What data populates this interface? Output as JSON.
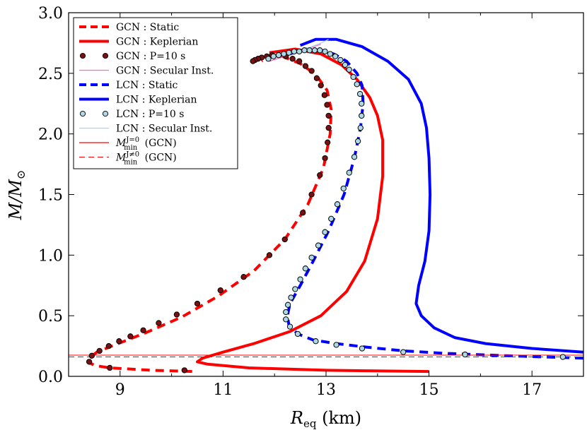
{
  "chart_data": {
    "type": "line",
    "xlabel": "R_eq (km)",
    "xlabel_main": "R",
    "xlabel_sub": "eq",
    "xlabel_unit": " (km)",
    "ylabel": "M/M_sun",
    "ylabel_main": "M/M",
    "ylabel_sub": "⊙",
    "xlim": [
      8,
      18
    ],
    "ylim": [
      0,
      3
    ],
    "xticks": [
      9,
      11,
      13,
      15,
      17
    ],
    "xtick_labels": [
      "9",
      "11",
      "13",
      "15",
      "17"
    ],
    "yticks": [
      0,
      0.5,
      1.0,
      1.5,
      2.0,
      2.5,
      3.0
    ],
    "ytick_labels": [
      "0.0",
      "0.5",
      "1.0",
      "1.5",
      "2.0",
      "2.5",
      "3.0"
    ],
    "legend_position": "top-left",
    "colors": {
      "gcn": "#ff0000",
      "lcn": "#0000ff",
      "gcn_dot": "#7a1010",
      "lcn_dot": "#add8e6",
      "gcn_secular": "#ff69b4",
      "lcn_secular": "#a9d3f5"
    },
    "series": [
      {
        "name": "GCN : Static",
        "legend": "GCN : Static",
        "style": "dashed",
        "color": "#ff0000",
        "x": [
          10.4,
          9.6,
          8.8,
          8.5,
          8.38,
          8.4,
          8.55,
          8.9,
          9.5,
          10.2,
          10.9,
          11.6,
          12.2,
          12.65,
          12.95,
          13.08,
          13.1,
          13.02,
          12.8,
          12.5,
          12.15,
          11.85,
          11.75
        ],
        "y": [
          0.04,
          0.05,
          0.07,
          0.09,
          0.12,
          0.15,
          0.2,
          0.26,
          0.36,
          0.49,
          0.66,
          0.87,
          1.13,
          1.42,
          1.72,
          2.0,
          2.2,
          2.36,
          2.49,
          2.58,
          2.64,
          2.63,
          2.6
        ]
      },
      {
        "name": "GCN : Keplerian",
        "legend": "GCN : Keplerian",
        "style": "solid",
        "color": "#ff0000",
        "x": [
          15.0,
          13.0,
          11.5,
          10.7,
          10.5,
          10.6,
          11.0,
          11.6,
          12.3,
          12.9,
          13.4,
          13.75,
          14.0,
          14.1,
          14.1,
          14.0,
          13.85,
          13.6,
          13.3,
          12.9,
          12.4,
          11.9
        ],
        "y": [
          0.04,
          0.05,
          0.07,
          0.1,
          0.12,
          0.15,
          0.2,
          0.27,
          0.37,
          0.5,
          0.7,
          0.95,
          1.3,
          1.65,
          1.95,
          2.15,
          2.3,
          2.45,
          2.57,
          2.66,
          2.7,
          2.67
        ]
      },
      {
        "name": "GCN : P=10 s",
        "legend": "GCN : P=10 s",
        "style": "markers",
        "color": "#7a1010",
        "x": [
          10.25,
          8.8,
          8.4,
          8.45,
          8.6,
          8.78,
          8.98,
          9.2,
          9.45,
          9.75,
          10.1,
          10.5,
          10.95,
          11.4,
          11.9,
          12.2,
          12.55,
          12.72,
          12.88,
          12.98,
          13.03,
          13.05,
          13.05,
          13.02,
          12.97,
          12.9,
          12.82,
          12.72,
          12.6,
          12.48,
          12.35,
          12.22,
          12.08,
          11.95,
          11.85,
          11.75,
          11.68,
          11.62,
          11.58
        ],
        "y": [
          0.05,
          0.07,
          0.12,
          0.17,
          0.21,
          0.25,
          0.29,
          0.33,
          0.38,
          0.44,
          0.51,
          0.6,
          0.71,
          0.82,
          1.0,
          1.13,
          1.35,
          1.5,
          1.66,
          1.8,
          1.93,
          2.05,
          2.15,
          2.24,
          2.32,
          2.4,
          2.46,
          2.52,
          2.56,
          2.6,
          2.62,
          2.64,
          2.65,
          2.65,
          2.64,
          2.63,
          2.62,
          2.61,
          2.6
        ]
      },
      {
        "name": "GCN : Secular Inst.",
        "legend": "GCN : Secular Inst.",
        "style": "solid-thin",
        "color": "#ff69b4",
        "x": [
          11.9,
          12.2,
          12.55,
          12.9
        ],
        "y": [
          2.6,
          2.64,
          2.69,
          2.74
        ]
      },
      {
        "name": "LCN : Static",
        "legend": "LCN : Static",
        "style": "dashed",
        "color": "#0000ff",
        "x": [
          18.0,
          16.5,
          15.3,
          14.5,
          13.8,
          13.2,
          12.75,
          12.45,
          12.28,
          12.25,
          12.3,
          12.5,
          12.75,
          13.05,
          13.35,
          13.55,
          13.67,
          13.72,
          13.7,
          13.6,
          13.4,
          13.15,
          12.9,
          12.6,
          12.3
        ],
        "y": [
          0.15,
          0.17,
          0.19,
          0.21,
          0.24,
          0.27,
          0.3,
          0.35,
          0.42,
          0.5,
          0.6,
          0.75,
          0.95,
          1.2,
          1.5,
          1.8,
          2.05,
          2.25,
          2.4,
          2.5,
          2.6,
          2.66,
          2.69,
          2.7,
          2.66
        ]
      },
      {
        "name": "LCN : Keplerian",
        "legend": "LCN : Keplerian",
        "style": "solid",
        "color": "#0000ff",
        "x": [
          18.0,
          17.0,
          16.1,
          15.5,
          15.1,
          14.85,
          14.75,
          14.8,
          14.92,
          15.0,
          15.02,
          15.0,
          14.95,
          14.85,
          14.6,
          14.2,
          13.7,
          13.2,
          12.8,
          12.5
        ],
        "y": [
          0.2,
          0.23,
          0.27,
          0.32,
          0.4,
          0.5,
          0.6,
          0.75,
          0.95,
          1.2,
          1.5,
          1.8,
          2.05,
          2.25,
          2.45,
          2.6,
          2.72,
          2.78,
          2.78,
          2.73
        ]
      },
      {
        "name": "LCN : P=10 s",
        "legend": "LCN : P=10 s",
        "style": "markers",
        "color": "#add8e6",
        "x": [
          17.6,
          15.7,
          14.5,
          13.7,
          13.2,
          12.8,
          12.45,
          12.3,
          12.22,
          12.22,
          12.26,
          12.32,
          12.4,
          12.5,
          12.6,
          12.72,
          12.85,
          12.98,
          13.1,
          13.22,
          13.34,
          13.45,
          13.55,
          13.62,
          13.67,
          13.69,
          13.69,
          13.66,
          13.6,
          13.53,
          13.45,
          13.37,
          13.28,
          13.18,
          13.08,
          12.98,
          12.88,
          12.78,
          12.68,
          12.58,
          12.48,
          12.38,
          12.28,
          12.18,
          12.08,
          11.98,
          11.88
        ],
        "y": [
          0.16,
          0.18,
          0.2,
          0.23,
          0.26,
          0.29,
          0.35,
          0.41,
          0.47,
          0.53,
          0.59,
          0.65,
          0.72,
          0.8,
          0.89,
          0.98,
          1.08,
          1.19,
          1.3,
          1.42,
          1.55,
          1.68,
          1.81,
          1.94,
          2.05,
          2.15,
          2.25,
          2.33,
          2.41,
          2.47,
          2.53,
          2.57,
          2.61,
          2.64,
          2.66,
          2.68,
          2.69,
          2.69,
          2.69,
          2.69,
          2.68,
          2.68,
          2.67,
          2.66,
          2.65,
          2.64,
          2.62
        ]
      },
      {
        "name": "LCN : Secular Inst.",
        "legend": "LCN : Secular Inst.",
        "style": "solid-thin",
        "color": "#a9d3f5",
        "x": [
          12.3,
          12.6,
          12.85,
          13.05
        ],
        "y": [
          2.66,
          2.7,
          2.74,
          2.78
        ]
      },
      {
        "name": "M_min^{J=0} (GCN)",
        "legend_main": "M",
        "legend_sub": "min",
        "legend_sup": "J=0",
        "legend_tail": " (GCN)",
        "style": "hline-solid",
        "color": "#ff0000",
        "y": 0.175
      },
      {
        "name": "M_min^{J≠0} (GCN)",
        "legend_main": "M",
        "legend_sub": "min",
        "legend_sup": "J≠0",
        "legend_tail": " (GCN)",
        "style": "hline-dashed",
        "color": "#ff0000",
        "y": 0.16
      }
    ]
  }
}
